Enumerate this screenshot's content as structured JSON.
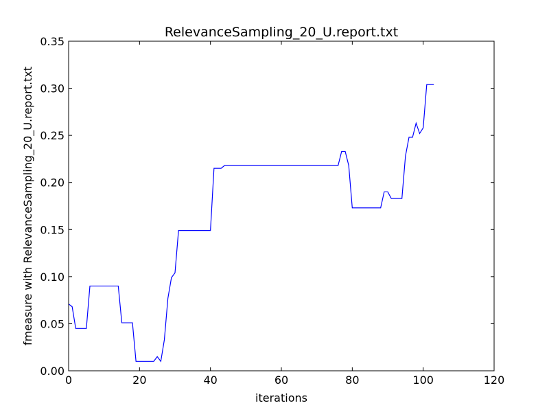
{
  "chart_data": {
    "type": "line",
    "title": "RelevanceSampling_20_U.report.txt",
    "xlabel": "iterations",
    "ylabel": "fmeasure with RelevanceSampling_20_U.report.txt",
    "xlim": [
      0,
      120
    ],
    "ylim": [
      0.0,
      0.35
    ],
    "xticks": [
      0,
      20,
      40,
      60,
      80,
      100,
      120
    ],
    "xtick_labels": [
      "0",
      "20",
      "40",
      "60",
      "80",
      "100",
      "120"
    ],
    "yticks": [
      0.0,
      0.05,
      0.1,
      0.15,
      0.2,
      0.25,
      0.3,
      0.35
    ],
    "ytick_labels": [
      "0.00",
      "0.05",
      "0.10",
      "0.15",
      "0.20",
      "0.25",
      "0.30",
      "0.35"
    ],
    "grid": false,
    "series": [
      {
        "color": "#0000ff",
        "x": [
          0,
          1,
          2,
          3,
          4,
          5,
          6,
          7,
          8,
          9,
          10,
          11,
          12,
          13,
          14,
          15,
          16,
          17,
          18,
          19,
          20,
          21,
          22,
          23,
          24,
          25,
          26,
          27,
          28,
          29,
          30,
          31,
          32,
          33,
          34,
          35,
          36,
          37,
          38,
          39,
          40,
          41,
          42,
          43,
          44,
          50,
          60,
          70,
          76,
          77,
          78,
          79,
          80,
          85,
          87,
          88,
          89,
          90,
          91,
          92,
          93,
          94,
          95,
          96,
          97,
          98,
          99,
          100,
          101,
          102,
          103
        ],
        "values": [
          0.071,
          0.068,
          0.045,
          0.045,
          0.045,
          0.045,
          0.09,
          0.09,
          0.09,
          0.09,
          0.09,
          0.09,
          0.09,
          0.09,
          0.09,
          0.051,
          0.051,
          0.051,
          0.051,
          0.01,
          0.01,
          0.01,
          0.01,
          0.01,
          0.01,
          0.015,
          0.01,
          0.033,
          0.077,
          0.099,
          0.104,
          0.149,
          0.149,
          0.149,
          0.149,
          0.149,
          0.149,
          0.149,
          0.149,
          0.149,
          0.149,
          0.215,
          0.215,
          0.215,
          0.218,
          0.218,
          0.218,
          0.218,
          0.218,
          0.233,
          0.233,
          0.218,
          0.173,
          0.173,
          0.173,
          0.173,
          0.19,
          0.19,
          0.183,
          0.183,
          0.183,
          0.183,
          0.228,
          0.248,
          0.248,
          0.263,
          0.252,
          0.258,
          0.304,
          0.304,
          0.304
        ]
      }
    ]
  }
}
